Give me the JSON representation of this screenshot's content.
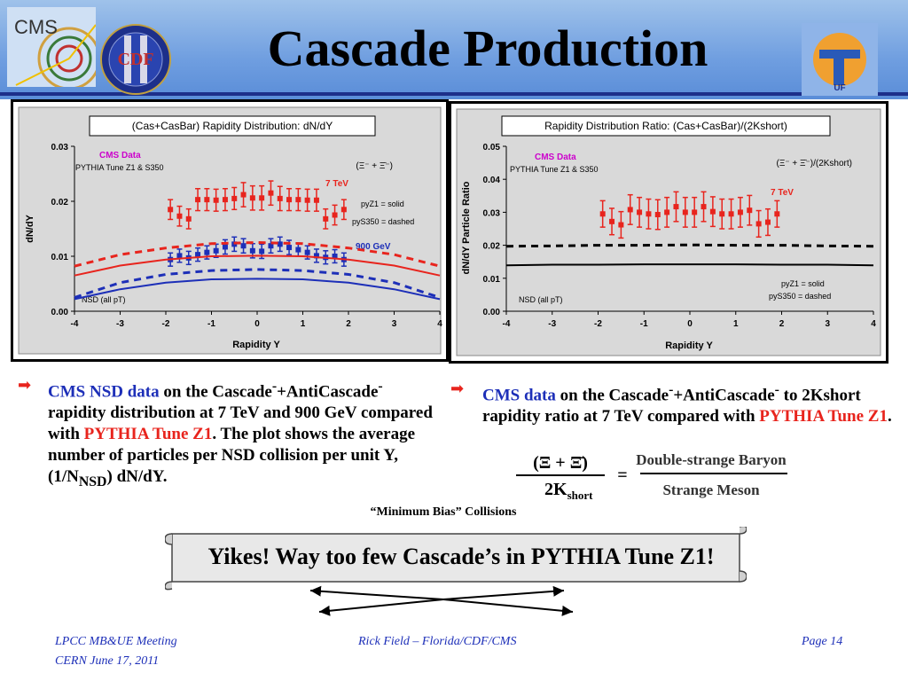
{
  "slide": {
    "title": "Cascade Production",
    "logos": [
      "CMS",
      "CDF",
      "UF"
    ]
  },
  "colors": {
    "header_blue": "#6f9ee0",
    "data_red": "#e8241d",
    "data_blue": "#1d2fb8",
    "cms_magenta": "#cc00cc"
  },
  "chart_data": [
    {
      "type": "scatter",
      "title": "(Cas+CasBar) Rapidity Distribution: dN/dY",
      "xlabel": "Rapidity Y",
      "ylabel": "dN/dY",
      "xlim": [
        -4,
        4
      ],
      "ylim": [
        0,
        0.03
      ],
      "xticks": [
        "-4",
        "-3",
        "-2",
        "-1",
        "0",
        "1",
        "2",
        "3",
        "4"
      ],
      "yticks": [
        "0.00",
        "0.01",
        "0.02",
        "0.03"
      ],
      "annotations": {
        "cms": "CMS Data",
        "pythia": "PYTHIA Tune Z1 & S350",
        "species": "(Ξ⁻ + Ξ̄⁻)",
        "solid": "pyZ1 = solid",
        "dashed": "pyS350 = dashed",
        "energy_high": "7 TeV",
        "energy_low": "900 GeV",
        "nsd": "NSD (all pT)"
      },
      "series": [
        {
          "name": "7 TeV",
          "color": "#e8241d",
          "x": [
            -1.9,
            -1.7,
            -1.5,
            -1.3,
            -1.1,
            -0.9,
            -0.7,
            -0.5,
            -0.3,
            -0.1,
            0.1,
            0.3,
            0.5,
            0.7,
            0.9,
            1.1,
            1.3,
            1.5,
            1.7,
            1.9
          ],
          "y": [
            0.0185,
            0.0173,
            0.0168,
            0.0203,
            0.0203,
            0.0202,
            0.0203,
            0.0205,
            0.0212,
            0.0206,
            0.0206,
            0.0215,
            0.0205,
            0.0203,
            0.0203,
            0.0202,
            0.0202,
            0.0168,
            0.0175,
            0.0185
          ],
          "err": [
            0.0018,
            0.0018,
            0.0018,
            0.002,
            0.002,
            0.002,
            0.002,
            0.002,
            0.0022,
            0.0022,
            0.0022,
            0.0022,
            0.0022,
            0.002,
            0.002,
            0.002,
            0.002,
            0.0018,
            0.0018,
            0.0018
          ]
        },
        {
          "name": "900 GeV",
          "color": "#1d2fb8",
          "x": [
            -1.9,
            -1.7,
            -1.5,
            -1.3,
            -1.1,
            -0.9,
            -0.7,
            -0.5,
            -0.3,
            -0.1,
            0.1,
            0.3,
            0.5,
            0.7,
            0.9,
            1.1,
            1.3,
            1.5,
            1.7,
            1.9
          ],
          "y": [
            0.0094,
            0.0101,
            0.0097,
            0.0103,
            0.0107,
            0.011,
            0.0117,
            0.0122,
            0.0119,
            0.011,
            0.0109,
            0.0119,
            0.0122,
            0.0116,
            0.0112,
            0.0107,
            0.0101,
            0.0098,
            0.01,
            0.0094
          ],
          "err": [
            0.0012,
            0.0012,
            0.0012,
            0.0012,
            0.0012,
            0.0012,
            0.0013,
            0.0013,
            0.0013,
            0.0013,
            0.0013,
            0.0013,
            0.0013,
            0.0013,
            0.0012,
            0.0012,
            0.0012,
            0.0012,
            0.0012,
            0.0012
          ]
        },
        {
          "name": "pyZ1 7 TeV",
          "color": "#e8241d",
          "style": "solid",
          "x": [
            -4,
            -3,
            -2,
            -1,
            0,
            1,
            2,
            3,
            4
          ],
          "y": [
            0.0065,
            0.0083,
            0.0094,
            0.01,
            0.0101,
            0.01,
            0.0094,
            0.0083,
            0.0065
          ]
        },
        {
          "name": "pyS350 7 TeV",
          "color": "#e8241d",
          "style": "dashed",
          "x": [
            -4,
            -3,
            -2,
            -1,
            0,
            1,
            2,
            3,
            4
          ],
          "y": [
            0.0082,
            0.0103,
            0.0115,
            0.0123,
            0.0125,
            0.0123,
            0.0115,
            0.0103,
            0.0082
          ]
        },
        {
          "name": "pyZ1 900 GeV",
          "color": "#1d2fb8",
          "style": "solid",
          "x": [
            -4,
            -3,
            -2,
            -1,
            0,
            1,
            2,
            3,
            4
          ],
          "y": [
            0.0022,
            0.004,
            0.0052,
            0.0058,
            0.0059,
            0.0058,
            0.0052,
            0.004,
            0.0022
          ]
        },
        {
          "name": "pyS350 900 GeV",
          "color": "#1d2fb8",
          "style": "dashed",
          "x": [
            -4,
            -3,
            -2,
            -1,
            0,
            1,
            2,
            3,
            4
          ],
          "y": [
            0.0025,
            0.0052,
            0.0067,
            0.0074,
            0.0076,
            0.0074,
            0.0067,
            0.0052,
            0.0025
          ]
        }
      ]
    },
    {
      "type": "scatter",
      "title": "Rapidity Distribution Ratio: (Cas+CasBar)/(2Kshort)",
      "xlabel": "Rapidity Y",
      "ylabel": "dN/dY Particle Ratio",
      "xlim": [
        -4,
        4
      ],
      "ylim": [
        0,
        0.05
      ],
      "xticks": [
        "-4",
        "-3",
        "-2",
        "-1",
        "0",
        "1",
        "2",
        "3",
        "4"
      ],
      "yticks": [
        "0.00",
        "0.01",
        "0.02",
        "0.03",
        "0.04",
        "0.05"
      ],
      "annotations": {
        "cms": "CMS Data",
        "pythia": "PYTHIA Tune Z1 & S350",
        "species": "(Ξ⁻ + Ξ̄⁻)/(2Kshort)",
        "solid": "pyZ1 = solid",
        "dashed": "pyS350 = dashed",
        "energy_high": "7 TeV",
        "nsd": "NSD (all pT)"
      },
      "series": [
        {
          "name": "7 TeV",
          "color": "#e8241d",
          "x": [
            -1.9,
            -1.7,
            -1.5,
            -1.3,
            -1.1,
            -0.9,
            -0.7,
            -0.5,
            -0.3,
            -0.1,
            0.1,
            0.3,
            0.5,
            0.7,
            0.9,
            1.1,
            1.3,
            1.5,
            1.7,
            1.9
          ],
          "y": [
            0.0295,
            0.0272,
            0.0262,
            0.0308,
            0.03,
            0.0295,
            0.0293,
            0.03,
            0.0317,
            0.03,
            0.03,
            0.0317,
            0.0302,
            0.0295,
            0.0295,
            0.03,
            0.0306,
            0.0265,
            0.027,
            0.0295
          ],
          "err": [
            0.004,
            0.004,
            0.004,
            0.0045,
            0.0045,
            0.0045,
            0.0045,
            0.0045,
            0.0045,
            0.0045,
            0.0045,
            0.0045,
            0.0045,
            0.0045,
            0.0045,
            0.0045,
            0.0045,
            0.004,
            0.004,
            0.004
          ]
        },
        {
          "name": "pyZ1",
          "color": "#000000",
          "style": "solid",
          "x": [
            -4,
            -3,
            -2,
            -1,
            0,
            1,
            2,
            3,
            4
          ],
          "y": [
            0.0139,
            0.0141,
            0.0141,
            0.0142,
            0.0142,
            0.0142,
            0.0141,
            0.0141,
            0.0139
          ]
        },
        {
          "name": "pyS350",
          "color": "#000000",
          "style": "dashed",
          "x": [
            -4,
            -3,
            -2,
            -1,
            0,
            1,
            2,
            3,
            4
          ],
          "y": [
            0.0197,
            0.0198,
            0.02,
            0.02,
            0.0201,
            0.02,
            0.02,
            0.0198,
            0.0197
          ]
        }
      ]
    }
  ],
  "bullets": {
    "left": {
      "cms": "CMS NSD data",
      "t1": " on the Cascade",
      "sup1": "-",
      "t2": "+AntiCascade",
      "sup2": "-",
      "t3": " rapidity distribution at 7 TeV and 900 GeV compared with ",
      "pythia": "PYTHIA Tune Z1",
      "t4": ".  The plot shows the average number of particles per NSD collision per unit Y, (1/N",
      "sub": "NSD",
      "t5": ") dN/dY."
    },
    "right": {
      "cms": "CMS data",
      "t1": " on the Cascade",
      "sup1": "-",
      "t2": "+AntiCascade",
      "sup2": "-",
      "t3": " to 2Kshort rapidity ratio at 7 TeV compared with ",
      "pythia": "PYTHIA Tune Z1",
      "t4": "."
    }
  },
  "formula": {
    "numerator": "(Ξ + Ξ̄)",
    "denominator_main": "2K",
    "denominator_sub": "short",
    "equals": "=",
    "rhs_top": "Double-strange Baryon",
    "rhs_bottom": "Strange Meson"
  },
  "banner": {
    "caption": "“Minimum Bias” Collisions",
    "text": "Yikes!  Way too few Cascade’s in PYTHIA Tune Z1!"
  },
  "footer": {
    "meeting": "LPCC MB&UE Meeting",
    "location": "CERN June 17, 2011",
    "author": "Rick Field – Florida/CDF/CMS",
    "page": "Page 14"
  }
}
